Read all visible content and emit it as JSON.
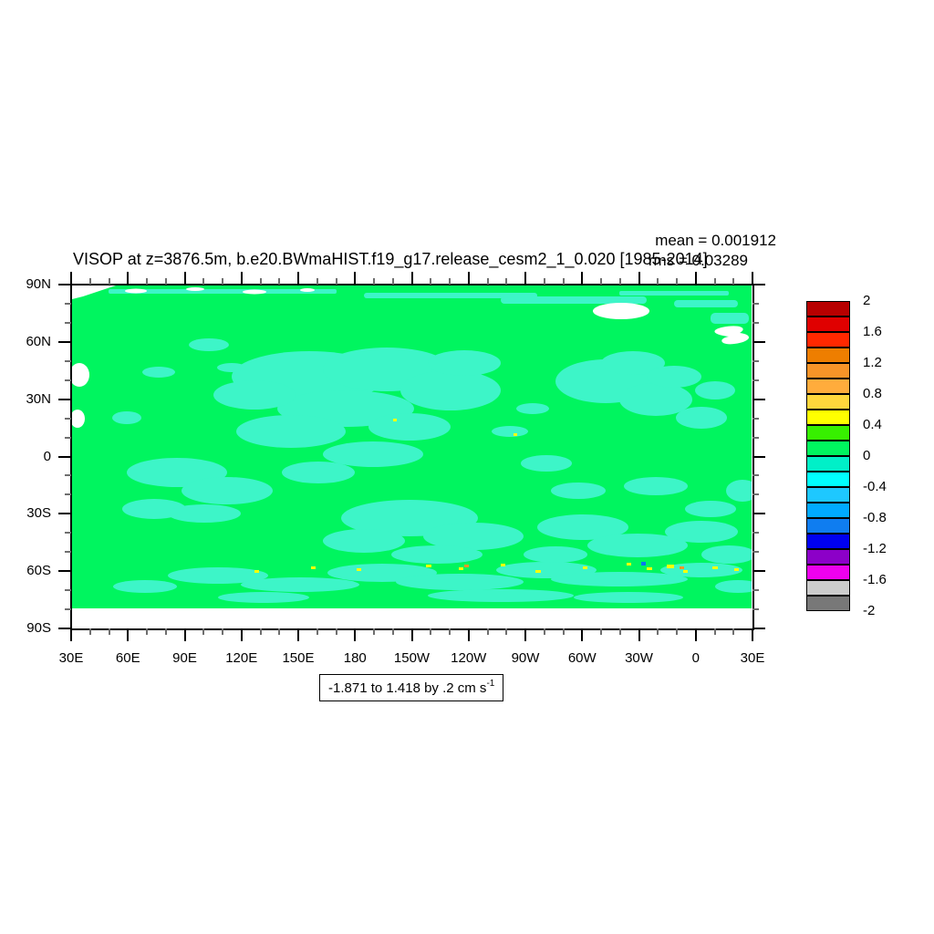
{
  "header": {
    "mean_label": "mean = 0.001912",
    "rms_label": "rms = 0.03289",
    "title": "VISOP at z=3876.5m, b.e20.BWmaHIST.f19_g17.release_cesm2_1_0.020 [1985-2014]"
  },
  "footer": {
    "range_label": "-1.871 to 1.418 by .2 cm s",
    "range_superscript": "-1"
  },
  "chart_data": {
    "type": "heatmap",
    "title": "VISOP at z=3876.5m, b.e20.BWmaHIST.f19_g17.release_cesm2_1_0.020 [1985-2014]",
    "field_name": "VISOP",
    "level": "z=3876.5m",
    "units": "cm s-1",
    "period": "1985-2014",
    "stats": {
      "mean": 0.001912,
      "rms": 0.03289
    },
    "data_range": {
      "min": -1.871,
      "max": 1.418,
      "contour_interval": 0.2
    },
    "x_axis": {
      "tick_labels": [
        "30E",
        "60E",
        "90E",
        "120E",
        "150E",
        "180",
        "150W",
        "120W",
        "90W",
        "60W",
        "30W",
        "0",
        "30E"
      ],
      "minor_ticks_per_interval": 2
    },
    "y_axis": {
      "tick_labels": [
        "90N",
        "60N",
        "30N",
        "0",
        "30S",
        "60S",
        "90S"
      ],
      "minor_ticks_per_interval": 2
    },
    "colorbar": {
      "orientation": "vertical",
      "tick_labels": [
        "2",
        "1.6",
        "1.2",
        "0.8",
        "0.4",
        "0",
        "-0.4",
        "-0.8",
        "-1.2",
        "-1.6",
        "-2"
      ],
      "level_top": 2.0,
      "level_bottom": -2.0,
      "step": 0.2,
      "colors_top_to_bottom": [
        "#b80000",
        "#e00000",
        "#ff2800",
        "#ee7e00",
        "#f79428",
        "#ffac3c",
        "#ffd73c",
        "#ffff00",
        "#37f000",
        "#00f55f",
        "#00f0c8",
        "#00ffff",
        "#1ec8ff",
        "#00aaff",
        "#0f7df0",
        "#0000f0",
        "#8c00c8",
        "#ee00ee",
        "#cccccc",
        "#787878"
      ]
    },
    "map_colors": {
      "dominant_band_color": "#00f55f",
      "dominant_band_range": "0 to 0.2",
      "patch_color": "#3df5c8",
      "patch_band_range": "-0.2 to 0",
      "missing_land_color": "#ffffff",
      "speck_yellow": "#ffff00",
      "speck_orange": "#ff9628",
      "speck_blue": "#0a78f0"
    },
    "legend_position": "right"
  }
}
